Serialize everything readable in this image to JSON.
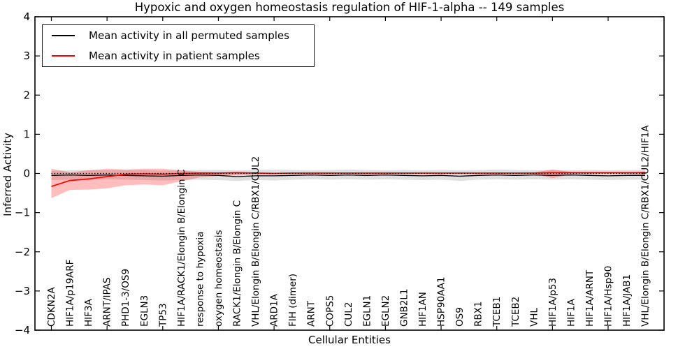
{
  "chart_data": {
    "type": "line",
    "title": "Hypoxic and oxygen homeostasis regulation of HIF-1-alpha -- 149 samples",
    "xlabel": "Cellular Entities",
    "ylabel": "Inferred Activity",
    "ylim": [
      -4,
      4
    ],
    "yticks": [
      4,
      3,
      2,
      1,
      0,
      -1,
      -2,
      -3,
      -4
    ],
    "grid": false,
    "legend_position": "upper left",
    "zero_line": {
      "y": 0,
      "style": "dotted",
      "color": "#000000"
    },
    "categories": [
      "CDKN2A",
      "HIF1A/p19ARF",
      "HIF3A",
      "ARNT/IPAS",
      "PHD1-3/OS9",
      "EGLN3",
      "TP53",
      "HIF1A/RACK1/Elongin B/Elongin C",
      "response to hypoxia",
      "oxygen homeostasis",
      "RACK1/Elongin B/Elongin C",
      "VHL/Elongin B/Elongin C/RBX1/CUL2",
      "ARD1A",
      "FIH (dimer)",
      "ARNT",
      "COPS5",
      "CUL2",
      "EGLN1",
      "EGLN2",
      "GNB2L1",
      "HIF1AN",
      "HSP90AA1",
      "OS9",
      "RBX1",
      "TCEB1",
      "TCEB2",
      "VHL",
      "HIF1A/p53",
      "HIF1A",
      "HIF1A/ARNT",
      "HIF1A/Hsp90",
      "HIF1A/JAB1",
      "VHL/Elongin B/Elongin C/RBX1/CUL2/HIF1A"
    ],
    "series": [
      {
        "name": "Mean activity in all permuted samples",
        "color": "#000000",
        "band_color": "#000000",
        "band_opacity": 0.12,
        "values": [
          -0.05,
          -0.04,
          -0.05,
          -0.04,
          -0.05,
          -0.06,
          -0.07,
          -0.05,
          -0.04,
          -0.05,
          -0.08,
          -0.06,
          -0.06,
          -0.05,
          -0.04,
          -0.05,
          -0.04,
          -0.05,
          -0.04,
          -0.05,
          -0.06,
          -0.05,
          -0.07,
          -0.05,
          -0.04,
          -0.05,
          -0.04,
          -0.05,
          -0.04,
          -0.05,
          -0.06,
          -0.05,
          -0.05
        ],
        "band_high": [
          0.07,
          0.08,
          0.09,
          0.08,
          0.09,
          0.08,
          0.07,
          0.08,
          0.09,
          0.09,
          0.08,
          0.09,
          0.1,
          0.09,
          0.08,
          0.09,
          0.1,
          0.09,
          0.08,
          0.09,
          0.08,
          0.09,
          0.08,
          0.09,
          0.1,
          0.09,
          0.08,
          0.09,
          0.08,
          0.09,
          0.08,
          0.09,
          0.09
        ],
        "band_low": [
          -0.17,
          -0.16,
          -0.17,
          -0.15,
          -0.16,
          -0.17,
          -0.18,
          -0.17,
          -0.16,
          -0.17,
          -0.19,
          -0.17,
          -0.18,
          -0.16,
          -0.15,
          -0.16,
          -0.15,
          -0.16,
          -0.15,
          -0.16,
          -0.17,
          -0.16,
          -0.19,
          -0.16,
          -0.15,
          -0.16,
          -0.15,
          -0.16,
          -0.15,
          -0.16,
          -0.17,
          -0.16,
          -0.16
        ]
      },
      {
        "name": "Mean activity in patient samples",
        "color": "#ff0000",
        "band_color": "#ff0000",
        "band_opacity": 0.26,
        "values": [
          -0.33,
          -0.18,
          -0.14,
          -0.08,
          -0.02,
          -0.01,
          -0.02,
          0.0,
          0.01,
          0.01,
          0.02,
          0.01,
          0.0,
          0.01,
          0.01,
          0.01,
          0.01,
          0.01,
          0.01,
          0.01,
          0.01,
          0.01,
          0.01,
          0.01,
          0.01,
          0.01,
          0.01,
          0.02,
          0.02,
          0.02,
          0.02,
          0.02,
          0.02
        ],
        "band_high": [
          0.12,
          0.03,
          0.08,
          0.12,
          0.1,
          0.12,
          0.12,
          0.08,
          0.04,
          0.03,
          0.03,
          0.02,
          0.02,
          0.02,
          0.02,
          0.02,
          0.02,
          0.02,
          0.02,
          0.02,
          0.02,
          0.02,
          0.02,
          0.02,
          0.02,
          0.02,
          0.03,
          0.1,
          0.04,
          0.03,
          0.03,
          0.03,
          0.05
        ],
        "band_low": [
          -0.63,
          -0.42,
          -0.41,
          -0.38,
          -0.3,
          -0.28,
          -0.3,
          -0.2,
          -0.1,
          -0.06,
          -0.04,
          -0.02,
          -0.02,
          -0.01,
          -0.01,
          -0.01,
          -0.01,
          -0.01,
          -0.01,
          -0.01,
          -0.01,
          -0.01,
          -0.01,
          -0.01,
          -0.01,
          -0.01,
          -0.01,
          -0.12,
          -0.02,
          -0.01,
          -0.01,
          -0.01,
          -0.04
        ]
      }
    ]
  }
}
